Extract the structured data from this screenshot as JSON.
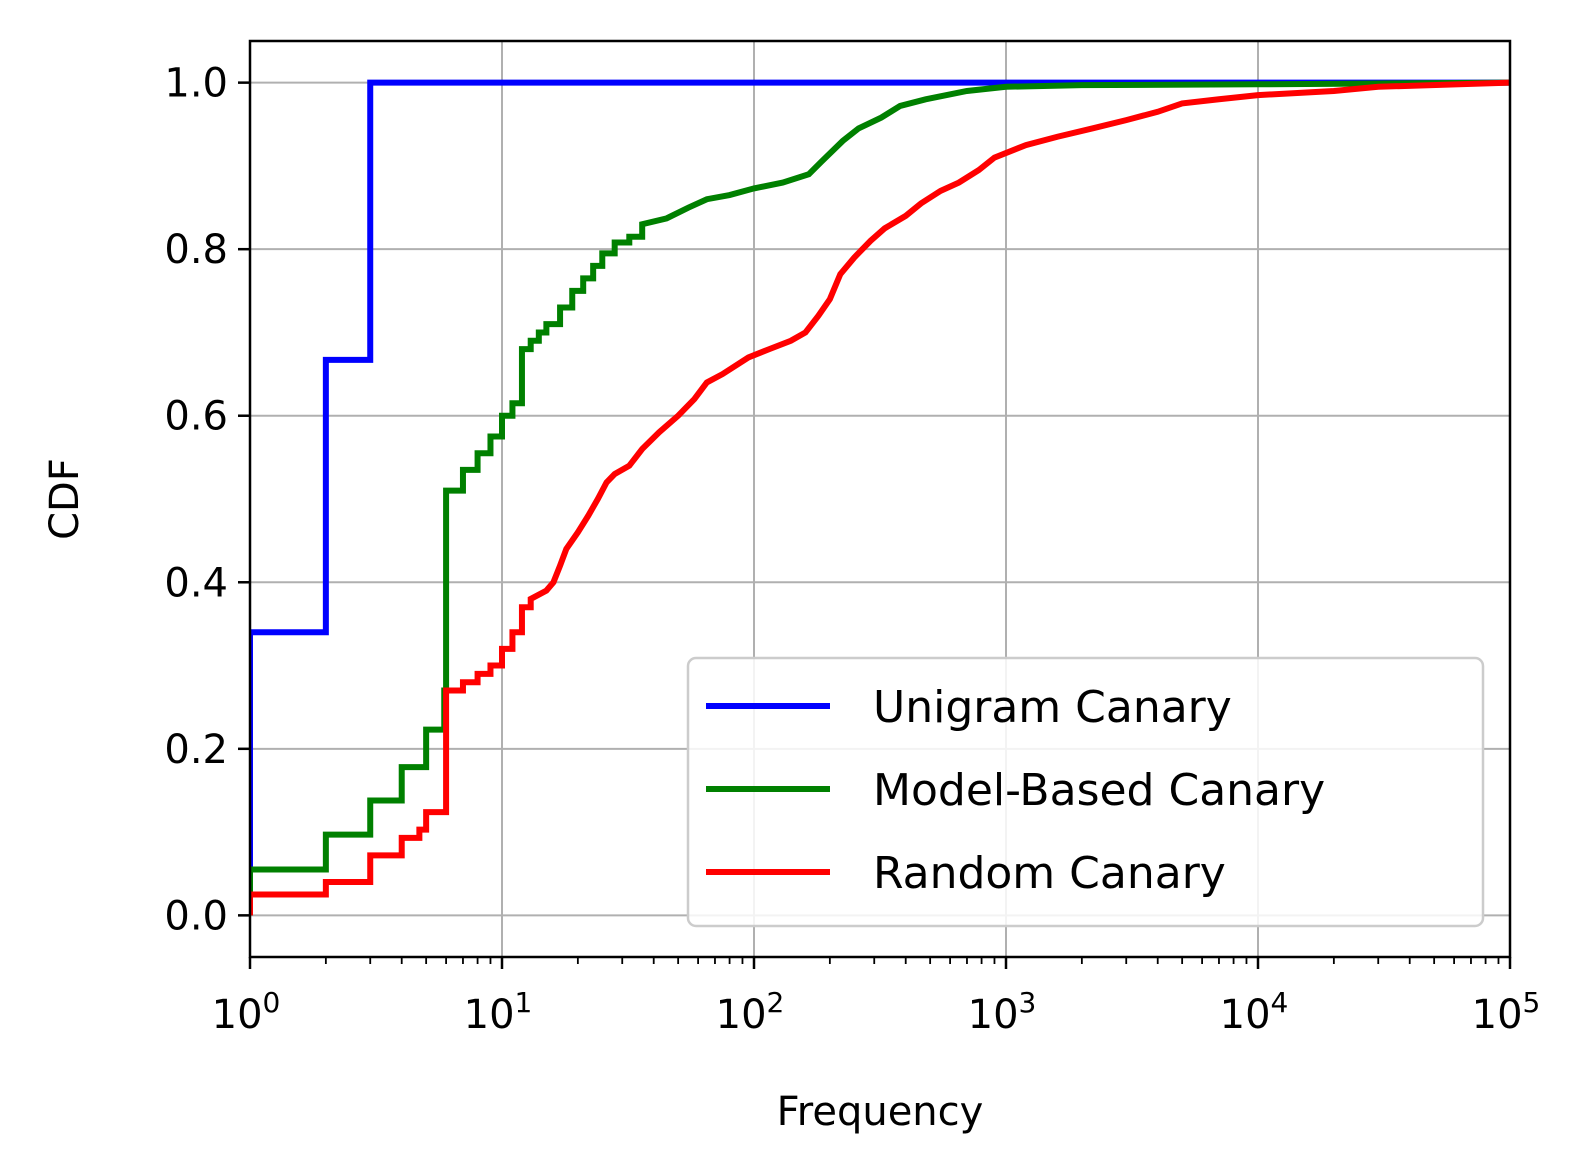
{
  "chart_data": {
    "type": "line",
    "title": "",
    "xlabel": "Frequency",
    "ylabel": "CDF",
    "xscale": "log",
    "xlim": [
      1,
      100000
    ],
    "ylim": [
      -0.05,
      1.05
    ],
    "grid": true,
    "legend_position": "lower-right",
    "x_ticks": [
      {
        "value": 1,
        "base": "10",
        "exp": "0"
      },
      {
        "value": 10,
        "base": "10",
        "exp": "1"
      },
      {
        "value": 100,
        "base": "10",
        "exp": "2"
      },
      {
        "value": 1000,
        "base": "10",
        "exp": "3"
      },
      {
        "value": 10000,
        "base": "10",
        "exp": "4"
      },
      {
        "value": 100000,
        "base": "10",
        "exp": "5"
      }
    ],
    "y_ticks": [
      {
        "value": 0.0,
        "label": "0.0"
      },
      {
        "value": 0.2,
        "label": "0.2"
      },
      {
        "value": 0.4,
        "label": "0.4"
      },
      {
        "value": 0.6,
        "label": "0.6"
      },
      {
        "value": 0.8,
        "label": "0.8"
      },
      {
        "value": 1.0,
        "label": "1.0"
      }
    ],
    "series": [
      {
        "name": "Unigram Canary",
        "color": "#0000ff",
        "step": true,
        "points": [
          [
            1,
            0
          ],
          [
            1,
            0.34
          ],
          [
            2,
            0.34
          ],
          [
            2,
            0.667
          ],
          [
            3,
            0.667
          ],
          [
            3,
            1.0
          ],
          [
            100000,
            1.0
          ]
        ]
      },
      {
        "name": "Model-Based Canary",
        "color": "#008000",
        "step": true,
        "points": [
          [
            1,
            0
          ],
          [
            1,
            0.055
          ],
          [
            2,
            0.055
          ],
          [
            2,
            0.097
          ],
          [
            3,
            0.097
          ],
          [
            3,
            0.138
          ],
          [
            4,
            0.138
          ],
          [
            4,
            0.178
          ],
          [
            5,
            0.178
          ],
          [
            5,
            0.223
          ],
          [
            5.9,
            0.223
          ],
          [
            5.9,
            0.27
          ],
          [
            6,
            0.27
          ],
          [
            6,
            0.51
          ],
          [
            7,
            0.51
          ],
          [
            7,
            0.535
          ],
          [
            8,
            0.535
          ],
          [
            8,
            0.555
          ],
          [
            9,
            0.555
          ],
          [
            9,
            0.575
          ],
          [
            10,
            0.575
          ],
          [
            10,
            0.6
          ],
          [
            11,
            0.6
          ],
          [
            11,
            0.615
          ],
          [
            12,
            0.615
          ],
          [
            12,
            0.68
          ],
          [
            13,
            0.68
          ],
          [
            13,
            0.69
          ],
          [
            14,
            0.69
          ],
          [
            14,
            0.7
          ],
          [
            15,
            0.7
          ],
          [
            15,
            0.71
          ],
          [
            17,
            0.71
          ],
          [
            17,
            0.73
          ],
          [
            19,
            0.73
          ],
          [
            19,
            0.75
          ],
          [
            21,
            0.75
          ],
          [
            21,
            0.765
          ],
          [
            23,
            0.765
          ],
          [
            23,
            0.78
          ],
          [
            25,
            0.78
          ],
          [
            25,
            0.795
          ],
          [
            28,
            0.795
          ],
          [
            28,
            0.808
          ],
          [
            32,
            0.808
          ],
          [
            32,
            0.815
          ],
          [
            36,
            0.815
          ],
          [
            36,
            0.83
          ],
          [
            45,
            0.837
          ],
          [
            55,
            0.85
          ],
          [
            65,
            0.86
          ],
          [
            80,
            0.865
          ],
          [
            100,
            0.873
          ],
          [
            130,
            0.88
          ],
          [
            165,
            0.89
          ],
          [
            185,
            0.905
          ],
          [
            225,
            0.93
          ],
          [
            260,
            0.945
          ],
          [
            320,
            0.958
          ],
          [
            380,
            0.972
          ],
          [
            480,
            0.98
          ],
          [
            700,
            0.99
          ],
          [
            1000,
            0.995
          ],
          [
            2000,
            0.997
          ],
          [
            10000,
            0.998
          ],
          [
            100000,
            1.0
          ]
        ]
      },
      {
        "name": "Random Canary",
        "color": "#ff0000",
        "step": true,
        "points": [
          [
            1,
            0
          ],
          [
            1,
            0.025
          ],
          [
            2,
            0.025
          ],
          [
            2,
            0.04
          ],
          [
            3,
            0.04
          ],
          [
            3,
            0.072
          ],
          [
            4,
            0.072
          ],
          [
            4,
            0.093
          ],
          [
            4.7,
            0.093
          ],
          [
            4.7,
            0.103
          ],
          [
            5,
            0.103
          ],
          [
            5,
            0.124
          ],
          [
            6,
            0.124
          ],
          [
            6,
            0.27
          ],
          [
            7,
            0.27
          ],
          [
            7,
            0.28
          ],
          [
            8,
            0.28
          ],
          [
            8,
            0.29
          ],
          [
            9,
            0.29
          ],
          [
            9,
            0.3
          ],
          [
            10,
            0.3
          ],
          [
            10,
            0.32
          ],
          [
            11,
            0.32
          ],
          [
            11,
            0.34
          ],
          [
            12,
            0.34
          ],
          [
            12,
            0.37
          ],
          [
            13,
            0.37
          ],
          [
            13,
            0.38
          ],
          [
            15,
            0.39
          ],
          [
            16,
            0.4
          ],
          [
            17,
            0.42
          ],
          [
            18,
            0.44
          ],
          [
            20,
            0.46
          ],
          [
            22,
            0.48
          ],
          [
            24,
            0.5
          ],
          [
            26,
            0.52
          ],
          [
            28,
            0.53
          ],
          [
            32,
            0.54
          ],
          [
            36,
            0.56
          ],
          [
            42,
            0.58
          ],
          [
            50,
            0.6
          ],
          [
            58,
            0.62
          ],
          [
            65,
            0.64
          ],
          [
            75,
            0.65
          ],
          [
            95,
            0.67
          ],
          [
            115,
            0.68
          ],
          [
            140,
            0.69
          ],
          [
            160,
            0.7
          ],
          [
            180,
            0.72
          ],
          [
            200,
            0.74
          ],
          [
            220,
            0.77
          ],
          [
            250,
            0.79
          ],
          [
            290,
            0.81
          ],
          [
            330,
            0.825
          ],
          [
            400,
            0.84
          ],
          [
            460,
            0.855
          ],
          [
            550,
            0.87
          ],
          [
            650,
            0.88
          ],
          [
            780,
            0.895
          ],
          [
            900,
            0.91
          ],
          [
            1200,
            0.925
          ],
          [
            1600,
            0.935
          ],
          [
            2200,
            0.945
          ],
          [
            3000,
            0.955
          ],
          [
            4000,
            0.965
          ],
          [
            5000,
            0.975
          ],
          [
            7000,
            0.98
          ],
          [
            10000,
            0.985
          ],
          [
            20000,
            0.99
          ],
          [
            30000,
            0.995
          ],
          [
            100000,
            1.0
          ]
        ]
      }
    ]
  }
}
